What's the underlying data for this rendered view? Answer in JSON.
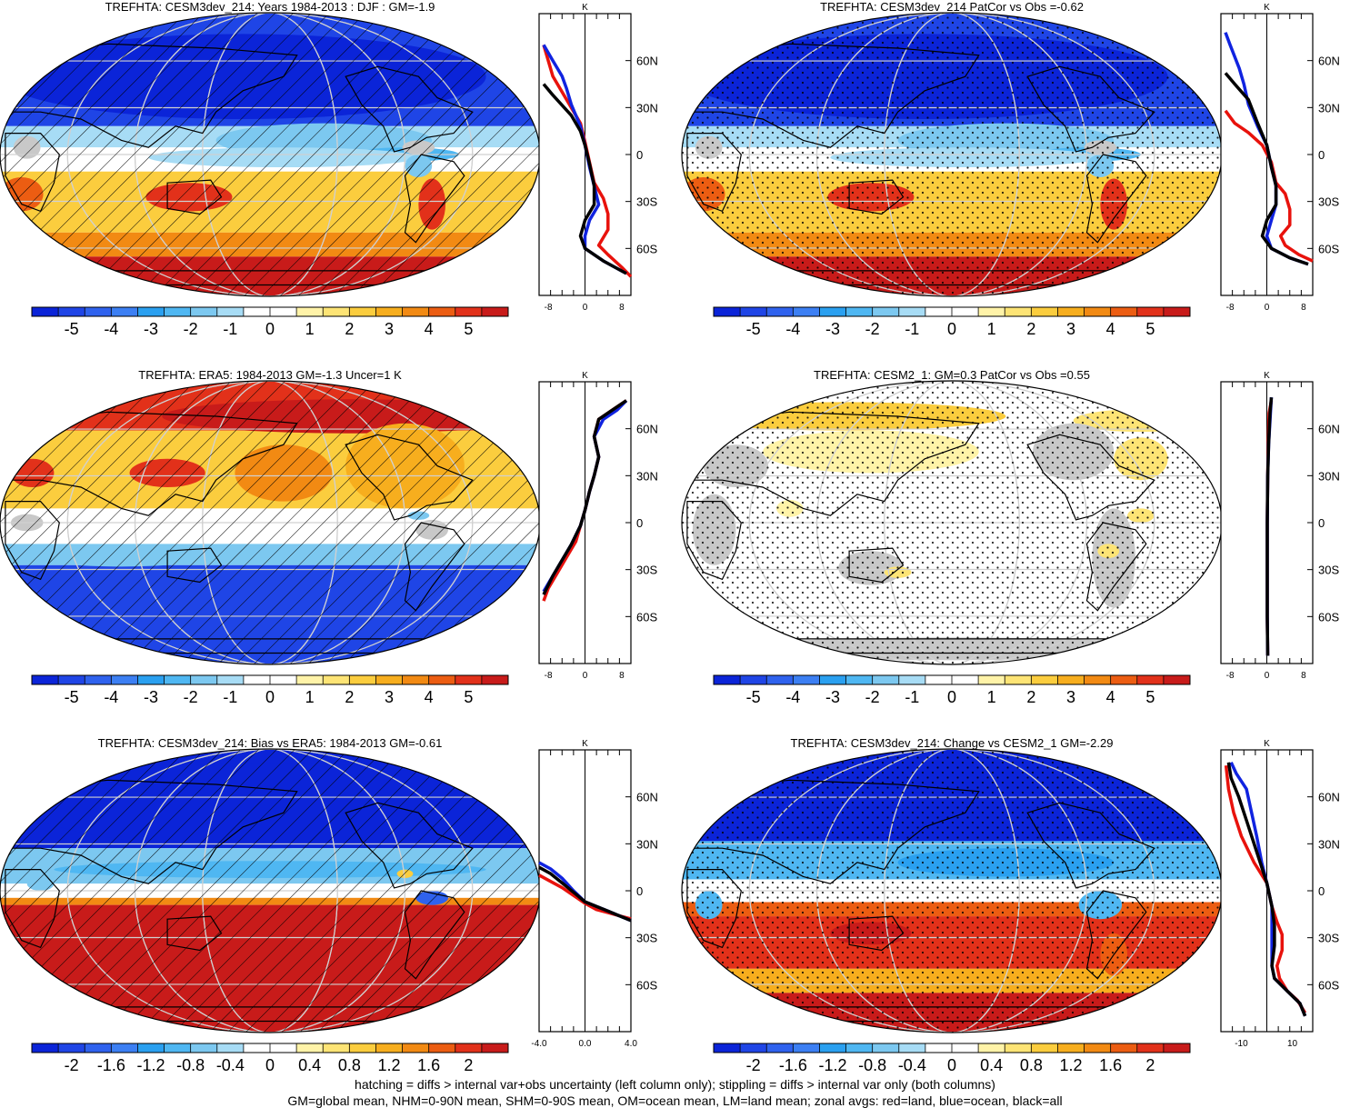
{
  "chart_data": {
    "type": "map",
    "colors": {
      "palette": [
        "#0b24d8",
        "#1f45e6",
        "#2f62ee",
        "#3c7ff3",
        "#2aa0f0",
        "#4fb7f2",
        "#7cc8f0",
        "#a7dcf5",
        "#ffffff",
        "#ffffff",
        "#fff3a8",
        "#fde475",
        "#fbcd3e",
        "#f7ae1e",
        "#f28a13",
        "#ec5d12",
        "#e2311a",
        "#c81b1a"
      ],
      "land_gray": "#c8c8c8",
      "zonal_land": "#e8120c",
      "zonal_ocean": "#1023e0",
      "zonal_all": "#000000"
    },
    "panels": [
      {
        "title": "TREFHTA: CESM3dev_214: Years 1984-2013 : DJF : GM=-1.9",
        "pattern": "model",
        "hatch": true,
        "stipple": false,
        "colorbar_labels": [
          "-5",
          "-4",
          "-3",
          "-2",
          "-1",
          "0",
          "1",
          "2",
          "3",
          "4",
          "5"
        ],
        "zonal": {
          "unit": "K",
          "xticks": [
            "-8",
            "0",
            "8"
          ],
          "xlim": [
            -10,
            10
          ],
          "lat_labels": [
            "60N",
            "30N",
            "0",
            "30S",
            "60S"
          ],
          "land": [
            [
              -9,
              70
            ],
            [
              -7,
              50
            ],
            [
              -4,
              35
            ],
            [
              -1,
              20
            ],
            [
              0,
              8
            ],
            [
              1,
              -5
            ],
            [
              2,
              -18
            ],
            [
              4,
              -28
            ],
            [
              5,
              -38
            ],
            [
              5,
              -48
            ],
            [
              3,
              -58
            ],
            [
              5,
              -64
            ],
            [
              8,
              -72
            ],
            [
              10,
              -78
            ]
          ],
          "ocean": [
            [
              -9,
              70
            ],
            [
              -7,
              60
            ],
            [
              -5,
              50
            ],
            [
              -4,
              42
            ],
            [
              -3,
              32
            ],
            [
              -1,
              18
            ],
            [
              0,
              6
            ],
            [
              1,
              -8
            ],
            [
              2,
              -20
            ],
            [
              3,
              -32
            ],
            [
              1,
              -42
            ],
            [
              0,
              -52
            ],
            [
              0,
              -60
            ],
            [
              4,
              -68
            ],
            [
              9,
              -76
            ]
          ],
          "all": [
            [
              -9,
              45
            ],
            [
              -7,
              38
            ],
            [
              -3,
              25
            ],
            [
              -1,
              15
            ],
            [
              0,
              6
            ],
            [
              1,
              -6
            ],
            [
              2,
              -20
            ],
            [
              2,
              -32
            ],
            [
              0,
              -42
            ],
            [
              -1,
              -52
            ],
            [
              0,
              -60
            ],
            [
              4,
              -68
            ],
            [
              9,
              -76
            ]
          ]
        }
      },
      {
        "title": "TREFHTA: CESM3dev_214 PatCor vs Obs =-0.62",
        "pattern": "model",
        "hatch": false,
        "stipple": true,
        "colorbar_labels": [
          "-5",
          "-4",
          "-3",
          "-2",
          "-1",
          "0",
          "1",
          "2",
          "3",
          "4",
          "5"
        ],
        "zonal": {
          "unit": "K",
          "xticks": [
            "-8",
            "0",
            "8"
          ],
          "xlim": [
            -10,
            10
          ],
          "lat_labels": [
            "60N",
            "30N",
            "0",
            "30S",
            "60S"
          ],
          "land": [
            [
              -9,
              28
            ],
            [
              -7,
              20
            ],
            [
              -4,
              14
            ],
            [
              -1,
              6
            ],
            [
              1,
              -5
            ],
            [
              2,
              -18
            ],
            [
              4,
              -25
            ],
            [
              5,
              -35
            ],
            [
              5,
              -45
            ],
            [
              3,
              -52
            ],
            [
              4,
              -58
            ],
            [
              7,
              -64
            ],
            [
              10,
              -68
            ]
          ],
          "ocean": [
            [
              -9,
              78
            ],
            [
              -8,
              70
            ],
            [
              -6,
              55
            ],
            [
              -5,
              45
            ],
            [
              -4,
              32
            ],
            [
              -2,
              18
            ],
            [
              0,
              6
            ],
            [
              1,
              -8
            ],
            [
              2,
              -20
            ],
            [
              2,
              -32
            ],
            [
              1,
              -42
            ],
            [
              0,
              -52
            ],
            [
              1,
              -60
            ],
            [
              5,
              -66
            ],
            [
              9,
              -70
            ]
          ],
          "all": [
            [
              -9,
              52
            ],
            [
              -7,
              45
            ],
            [
              -4,
              35
            ],
            [
              -2,
              20
            ],
            [
              0,
              6
            ],
            [
              1,
              -8
            ],
            [
              2,
              -20
            ],
            [
              2,
              -32
            ],
            [
              0,
              -42
            ],
            [
              -1,
              -52
            ],
            [
              1,
              -60
            ],
            [
              5,
              -66
            ],
            [
              9,
              -70
            ]
          ]
        }
      },
      {
        "title": "TREFHTA: ERA5: 1984-2013 GM=-1.3 Uncer=1 K",
        "pattern": "era5",
        "hatch": true,
        "stipple": false,
        "colorbar_labels": [
          "-5",
          "-4",
          "-3",
          "-2",
          "-1",
          "0",
          "1",
          "2",
          "3",
          "4",
          "5"
        ],
        "zonal": {
          "unit": "K",
          "xticks": [
            "-8",
            "0",
            "8"
          ],
          "xlim": [
            -10,
            10
          ],
          "lat_labels": [
            "60N",
            "30N",
            "0",
            "30S",
            "60S"
          ],
          "land": [
            [
              9,
              78
            ],
            [
              6,
              72
            ],
            [
              3,
              66
            ],
            [
              2,
              55
            ],
            [
              3,
              42
            ],
            [
              2,
              30
            ],
            [
              1,
              20
            ],
            [
              0,
              8
            ],
            [
              -1,
              -2
            ],
            [
              -2,
              -12
            ],
            [
              -4,
              -22
            ],
            [
              -6,
              -32
            ],
            [
              -8,
              -42
            ],
            [
              -9,
              -50
            ]
          ],
          "ocean": [
            [
              9,
              78
            ],
            [
              7,
              72
            ],
            [
              4,
              66
            ],
            [
              2,
              55
            ],
            [
              3,
              42
            ],
            [
              2,
              30
            ],
            [
              1,
              20
            ],
            [
              0,
              8
            ],
            [
              -1,
              -2
            ],
            [
              -3,
              -14
            ],
            [
              -5,
              -24
            ],
            [
              -7,
              -34
            ],
            [
              -9,
              -44
            ]
          ],
          "all": [
            [
              9,
              78
            ],
            [
              6,
              72
            ],
            [
              3,
              66
            ],
            [
              2,
              55
            ],
            [
              3,
              42
            ],
            [
              2,
              30
            ],
            [
              1,
              20
            ],
            [
              0,
              8
            ],
            [
              -1,
              -2
            ],
            [
              -3,
              -14
            ],
            [
              -5,
              -24
            ],
            [
              -7,
              -34
            ],
            [
              -9,
              -46
            ]
          ]
        }
      },
      {
        "title": "TREFHTA: CESM2_1: GM=0.3 PatCor vs Obs =0.55",
        "pattern": "cesm2",
        "hatch": false,
        "stipple": true,
        "colorbar_labels": [
          "-5",
          "-4",
          "-3",
          "-2",
          "-1",
          "0",
          "1",
          "2",
          "3",
          "4",
          "5"
        ],
        "zonal": {
          "unit": "K",
          "xticks": [
            "-8",
            "0",
            "8"
          ],
          "xlim": [
            -10,
            10
          ],
          "lat_labels": [
            "60N",
            "30N",
            "0",
            "30S",
            "60S"
          ],
          "land": [
            [
              1,
              78
            ],
            [
              0.5,
              70
            ],
            [
              0.3,
              50
            ],
            [
              0.2,
              30
            ],
            [
              0.1,
              0
            ],
            [
              0.1,
              -30
            ],
            [
              0.1,
              -60
            ],
            [
              0.2,
              -85
            ]
          ],
          "ocean": [
            [
              1,
              80
            ],
            [
              0.8,
              70
            ],
            [
              0.4,
              50
            ],
            [
              0.2,
              30
            ],
            [
              0.1,
              0
            ],
            [
              0.1,
              -30
            ],
            [
              0.1,
              -60
            ],
            [
              0.2,
              -85
            ]
          ],
          "all": [
            [
              1,
              80
            ],
            [
              0.7,
              70
            ],
            [
              0.4,
              50
            ],
            [
              0.2,
              30
            ],
            [
              0.1,
              0
            ],
            [
              0.1,
              -30
            ],
            [
              0.1,
              -60
            ],
            [
              0.2,
              -85
            ]
          ]
        }
      },
      {
        "title": "TREFHTA: CESM3dev_214: Bias vs ERA5: 1984-2013 GM=-0.61",
        "pattern": "bias",
        "hatch": true,
        "stipple": false,
        "colorbar_labels": [
          "-2",
          "-1.6",
          "-1.2",
          "-0.8",
          "-0.4",
          "0",
          "0.4",
          "0.8",
          "1.2",
          "1.6",
          "2"
        ],
        "zonal": {
          "unit": "K",
          "xticks": [
            "-4.0",
            "0.0",
            "4.0"
          ],
          "xlim": [
            -4,
            4
          ],
          "lat_labels": [
            "60N",
            "30N",
            "0",
            "30S",
            "60S"
          ],
          "land": [
            [
              -4,
              10
            ],
            [
              -3,
              6
            ],
            [
              -2,
              2
            ],
            [
              -1,
              -3
            ],
            [
              0,
              -8
            ],
            [
              1,
              -12
            ],
            [
              2,
              -14
            ],
            [
              3,
              -16
            ],
            [
              4,
              -18
            ]
          ],
          "ocean": [
            [
              -4,
              18
            ],
            [
              -3,
              14
            ],
            [
              -2,
              8
            ],
            [
              -1,
              0
            ],
            [
              0,
              -7
            ],
            [
              1,
              -10
            ],
            [
              2,
              -13
            ],
            [
              3,
              -16
            ],
            [
              4,
              -19
            ]
          ],
          "all": [
            [
              -4,
              15
            ],
            [
              -3,
              11
            ],
            [
              -2,
              5
            ],
            [
              -1,
              -1
            ],
            [
              0,
              -7
            ],
            [
              1,
              -10
            ],
            [
              2,
              -13
            ],
            [
              3,
              -16
            ],
            [
              4,
              -19
            ]
          ]
        }
      },
      {
        "title": "TREFHTA: CESM3dev_214: Change vs CESM2_1 GM=-2.29",
        "pattern": "change",
        "hatch": false,
        "stipple": true,
        "colorbar_labels": [
          "-2",
          "-1.6",
          "-1.2",
          "-0.8",
          "-0.4",
          "0",
          "0.4",
          "0.8",
          "1.2",
          "1.6",
          "2"
        ],
        "zonal": {
          "unit": "K",
          "xticks": [
            "-10",
            "10"
          ],
          "xlim": [
            -18,
            18
          ],
          "lat_labels": [
            "60N",
            "30N",
            "0",
            "30S",
            "60S"
          ],
          "land": [
            [
              -16,
              80
            ],
            [
              -15,
              65
            ],
            [
              -13,
              50
            ],
            [
              -10,
              35
            ],
            [
              -5,
              18
            ],
            [
              0,
              5
            ],
            [
              2,
              -10
            ],
            [
              4,
              -20
            ],
            [
              6,
              -28
            ],
            [
              6,
              -38
            ],
            [
              4,
              -48
            ],
            [
              5,
              -56
            ],
            [
              8,
              -64
            ],
            [
              12,
              -70
            ],
            [
              15,
              -78
            ]
          ],
          "ocean": [
            [
              -14,
              82
            ],
            [
              -12,
              75
            ],
            [
              -8,
              65
            ],
            [
              -6,
              50
            ],
            [
              -4,
              35
            ],
            [
              -2,
              18
            ],
            [
              0,
              5
            ],
            [
              2,
              -10
            ],
            [
              2,
              -22
            ],
            [
              2,
              -35
            ],
            [
              2,
              -48
            ],
            [
              3,
              -56
            ],
            [
              8,
              -64
            ],
            [
              13,
              -72
            ],
            [
              15,
              -80
            ]
          ],
          "all": [
            [
              -15,
              82
            ],
            [
              -14,
              72
            ],
            [
              -11,
              60
            ],
            [
              -8,
              45
            ],
            [
              -5,
              30
            ],
            [
              -2,
              15
            ],
            [
              0,
              5
            ],
            [
              2,
              -10
            ],
            [
              3,
              -22
            ],
            [
              3,
              -35
            ],
            [
              2,
              -48
            ],
            [
              3,
              -56
            ],
            [
              8,
              -64
            ],
            [
              13,
              -72
            ],
            [
              15,
              -80
            ]
          ]
        }
      }
    ]
  },
  "footer": {
    "line1": "hatching = diffs > internal var+obs uncertainty (left column only); stippling = diffs > internal var only (both columns)",
    "line2": "GM=global mean, NHM=0-90N mean, SHM=0-90S mean, OM=ocean mean, LM=land mean; zonal avgs: red=land, blue=ocean, black=all"
  }
}
